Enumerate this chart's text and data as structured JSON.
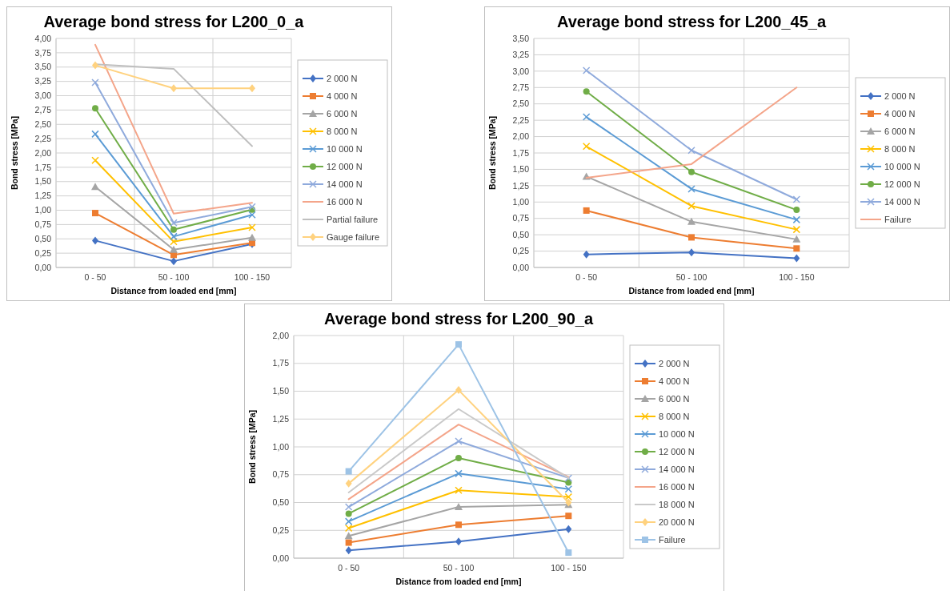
{
  "chart_data": [
    {
      "type": "line",
      "title": "Average bond stress for L200_0_a",
      "xlabel": "Distance from loaded end [mm]",
      "ylabel": "Bond stress [MPa]",
      "categories": [
        "0 - 50",
        "50 - 100",
        "100 - 150"
      ],
      "ylim": [
        0,
        4
      ],
      "yticks": [
        {
          "value": 0,
          "label": "0,00"
        },
        {
          "value": 0.25,
          "label": "0,25"
        },
        {
          "value": 0.5,
          "label": "0,50"
        },
        {
          "value": 0.75,
          "label": "0,75"
        },
        {
          "value": 1,
          "label": "1,00"
        },
        {
          "value": 1.25,
          "label": "1,25"
        },
        {
          "value": 1.5,
          "label": "1,50"
        },
        {
          "value": 1.75,
          "label": "1,75"
        },
        {
          "value": 2,
          "label": "2,00"
        },
        {
          "value": 2.25,
          "label": "2,25"
        },
        {
          "value": 2.5,
          "label": "2,50"
        },
        {
          "value": 2.75,
          "label": "2,75"
        },
        {
          "value": 3,
          "label": "3,00"
        },
        {
          "value": 3.25,
          "label": "3,25"
        },
        {
          "value": 3.5,
          "label": "3,50"
        },
        {
          "value": 3.75,
          "label": "3,75"
        },
        {
          "value": 4,
          "label": "4,00"
        }
      ],
      "grid": true,
      "legend": "right",
      "series": [
        {
          "name": "2 000 N",
          "color": "#4472c4",
          "marker": "diamond",
          "values": [
            0.47,
            0.11,
            0.41
          ]
        },
        {
          "name": "4 000 N",
          "color": "#ed7d31",
          "marker": "square",
          "values": [
            0.95,
            0.22,
            0.43
          ]
        },
        {
          "name": "6 000 N",
          "color": "#a5a5a5",
          "marker": "triangle",
          "values": [
            1.41,
            0.31,
            0.52
          ]
        },
        {
          "name": "8 000 N",
          "color": "#ffc000",
          "marker": "cross",
          "values": [
            1.87,
            0.45,
            0.7
          ]
        },
        {
          "name": "10 000 N",
          "color": "#5b9bd5",
          "marker": "cross",
          "values": [
            2.33,
            0.54,
            0.92
          ]
        },
        {
          "name": "12 000 N",
          "color": "#70ad47",
          "marker": "circle",
          "values": [
            2.78,
            0.66,
            1.01
          ]
        },
        {
          "name": "14 000 N",
          "color": "#8faadc",
          "marker": "cross",
          "values": [
            3.23,
            0.78,
            1.06
          ]
        },
        {
          "name": "16 000 N",
          "color": "#f4a58a",
          "marker": "none",
          "values": [
            3.89,
            0.94,
            1.13
          ]
        },
        {
          "name": "Partial failure",
          "color": "#bfbfbf",
          "marker": "none",
          "values": [
            3.55,
            3.47,
            2.12
          ]
        },
        {
          "name": "Gauge failure",
          "color": "#ffd27f",
          "marker": "diamond",
          "values": [
            3.53,
            3.13,
            3.13
          ]
        }
      ]
    },
    {
      "type": "line",
      "title": "Average bond stress for L200_45_a",
      "xlabel": "Distance from loaded end [mm]",
      "ylabel": "Bond stress [MPa]",
      "categories": [
        "0 - 50",
        "50 - 100",
        "100 - 150"
      ],
      "ylim": [
        0,
        3.5
      ],
      "yticks": [
        {
          "value": 0,
          "label": "0,00"
        },
        {
          "value": 0.25,
          "label": "0,25"
        },
        {
          "value": 0.5,
          "label": "0,50"
        },
        {
          "value": 0.75,
          "label": "0,75"
        },
        {
          "value": 1,
          "label": "1,00"
        },
        {
          "value": 1.25,
          "label": "1,25"
        },
        {
          "value": 1.5,
          "label": "1,50"
        },
        {
          "value": 1.75,
          "label": "1,75"
        },
        {
          "value": 2,
          "label": "2,00"
        },
        {
          "value": 2.25,
          "label": "2,25"
        },
        {
          "value": 2.5,
          "label": "2,50"
        },
        {
          "value": 2.75,
          "label": "2,75"
        },
        {
          "value": 3,
          "label": "3,00"
        },
        {
          "value": 3.25,
          "label": "3,25"
        },
        {
          "value": 3.5,
          "label": "3,50"
        }
      ],
      "grid": true,
      "legend": "right",
      "series": [
        {
          "name": "2 000 N",
          "color": "#4472c4",
          "marker": "diamond",
          "values": [
            0.2,
            0.23,
            0.14
          ]
        },
        {
          "name": "4 000 N",
          "color": "#ed7d31",
          "marker": "square",
          "values": [
            0.87,
            0.46,
            0.29
          ]
        },
        {
          "name": "6 000 N",
          "color": "#a5a5a5",
          "marker": "triangle",
          "values": [
            1.39,
            0.7,
            0.43
          ]
        },
        {
          "name": "8 000 N",
          "color": "#ffc000",
          "marker": "cross",
          "values": [
            1.85,
            0.94,
            0.58
          ]
        },
        {
          "name": "10 000 N",
          "color": "#5b9bd5",
          "marker": "cross",
          "values": [
            2.3,
            1.2,
            0.73
          ]
        },
        {
          "name": "12 000 N",
          "color": "#70ad47",
          "marker": "circle",
          "values": [
            2.69,
            1.46,
            0.88
          ]
        },
        {
          "name": "14 000 N",
          "color": "#8faadc",
          "marker": "cross",
          "values": [
            3.01,
            1.79,
            1.04
          ]
        },
        {
          "name": "Failure",
          "color": "#f4a58a",
          "marker": "none",
          "values": [
            1.37,
            1.58,
            2.75
          ]
        }
      ]
    },
    {
      "type": "line",
      "title": "Average bond stress for L200_90_a",
      "xlabel": "Distance from loaded end [mm]",
      "ylabel": "Bond stress [MPa]",
      "categories": [
        "0 - 50",
        "50 - 100",
        "100 - 150"
      ],
      "ylim": [
        0,
        2
      ],
      "yticks": [
        {
          "value": 0,
          "label": "0,00"
        },
        {
          "value": 0.25,
          "label": "0,25"
        },
        {
          "value": 0.5,
          "label": "0,50"
        },
        {
          "value": 0.75,
          "label": "0,75"
        },
        {
          "value": 1,
          "label": "1,00"
        },
        {
          "value": 1.25,
          "label": "1,25"
        },
        {
          "value": 1.5,
          "label": "1,50"
        },
        {
          "value": 1.75,
          "label": "1,75"
        },
        {
          "value": 2,
          "label": "2,00"
        }
      ],
      "grid": true,
      "legend": "right",
      "series": [
        {
          "name": "2 000 N",
          "color": "#4472c4",
          "marker": "diamond",
          "values": [
            0.07,
            0.15,
            0.26
          ]
        },
        {
          "name": "4 000 N",
          "color": "#ed7d31",
          "marker": "square",
          "values": [
            0.14,
            0.3,
            0.38
          ]
        },
        {
          "name": "6 000 N",
          "color": "#a5a5a5",
          "marker": "triangle",
          "values": [
            0.2,
            0.46,
            0.48
          ]
        },
        {
          "name": "8 000 N",
          "color": "#ffc000",
          "marker": "cross",
          "values": [
            0.27,
            0.61,
            0.55
          ]
        },
        {
          "name": "10 000 N",
          "color": "#5b9bd5",
          "marker": "cross",
          "values": [
            0.33,
            0.76,
            0.62
          ]
        },
        {
          "name": "12 000 N",
          "color": "#70ad47",
          "marker": "circle",
          "values": [
            0.4,
            0.9,
            0.68
          ]
        },
        {
          "name": "14 000 N",
          "color": "#8faadc",
          "marker": "cross",
          "values": [
            0.46,
            1.05,
            0.72
          ]
        },
        {
          "name": "16 000 N",
          "color": "#f4a58a",
          "marker": "none",
          "values": [
            0.53,
            1.2,
            0.73
          ]
        },
        {
          "name": "18 000 N",
          "color": "#c9c9c9",
          "marker": "none",
          "values": [
            0.59,
            1.34,
            0.72
          ]
        },
        {
          "name": "20 000 N",
          "color": "#ffd27f",
          "marker": "diamond",
          "values": [
            0.67,
            1.51,
            0.5
          ]
        },
        {
          "name": "Failure",
          "color": "#9dc3e6",
          "marker": "square",
          "values": [
            0.78,
            1.92,
            0.05
          ]
        }
      ]
    }
  ]
}
